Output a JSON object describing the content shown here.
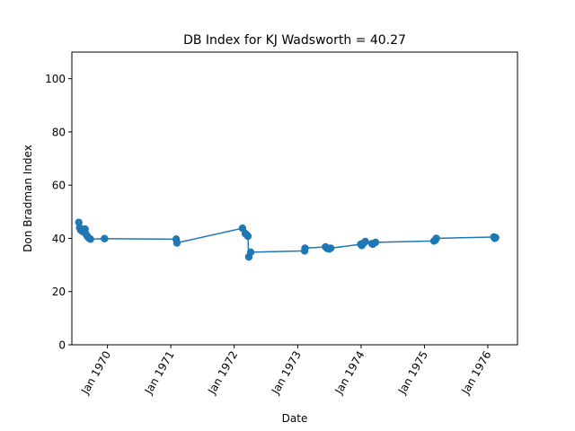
{
  "chart_data": {
    "type": "line",
    "title": "DB Index for KJ Wadsworth = 40.27",
    "xlabel": "Date",
    "ylabel": "Don Bradman Index",
    "ylim": [
      0,
      110
    ],
    "xlim": [
      "1969-06-10",
      "1976-06-20"
    ],
    "yticks": [
      0,
      20,
      40,
      60,
      80,
      100
    ],
    "xticks": [
      {
        "date": "1970-01-01",
        "label": "Jan 1970"
      },
      {
        "date": "1971-01-01",
        "label": "Jan 1971"
      },
      {
        "date": "1972-01-01",
        "label": "Jan 1972"
      },
      {
        "date": "1973-01-01",
        "label": "Jan 1973"
      },
      {
        "date": "1974-01-01",
        "label": "Jan 1974"
      },
      {
        "date": "1975-01-01",
        "label": "Jan 1975"
      },
      {
        "date": "1976-01-01",
        "label": "Jan 1976"
      }
    ],
    "grid": false,
    "line_color": "#1f77b4",
    "series": [
      {
        "marker": "circle",
        "points": [
          {
            "x": "1969-07-20",
            "y": 46.0
          },
          {
            "x": "1969-07-25",
            "y": 44.0
          },
          {
            "x": "1969-07-30",
            "y": 43.2
          },
          {
            "x": "1969-08-10",
            "y": 42.6
          },
          {
            "x": "1969-08-25",
            "y": 43.5
          },
          {
            "x": "1969-08-28",
            "y": 41.8
          },
          {
            "x": "1969-09-05",
            "y": 41.0
          },
          {
            "x": "1969-09-10",
            "y": 40.5
          },
          {
            "x": "1969-09-18",
            "y": 40.0
          },
          {
            "x": "1969-09-25",
            "y": 39.7
          },
          {
            "x": "1969-12-15",
            "y": 39.9
          },
          {
            "x": "1971-02-01",
            "y": 39.7
          },
          {
            "x": "1971-02-05",
            "y": 38.3
          },
          {
            "x": "1972-02-18",
            "y": 43.8
          },
          {
            "x": "1972-03-05",
            "y": 41.8
          },
          {
            "x": "1972-03-15",
            "y": 41.2
          },
          {
            "x": "1972-03-20",
            "y": 40.8
          },
          {
            "x": "1972-03-25",
            "y": 33.0
          },
          {
            "x": "1972-04-05",
            "y": 34.8
          },
          {
            "x": "1973-02-10",
            "y": 35.3
          },
          {
            "x": "1973-02-12",
            "y": 36.3
          },
          {
            "x": "1973-06-10",
            "y": 36.8
          },
          {
            "x": "1973-06-20",
            "y": 36.2
          },
          {
            "x": "1973-07-01",
            "y": 36.0
          },
          {
            "x": "1973-07-10",
            "y": 36.3
          },
          {
            "x": "1973-12-30",
            "y": 37.8
          },
          {
            "x": "1974-01-05",
            "y": 37.3
          },
          {
            "x": "1974-01-15",
            "y": 38.2
          },
          {
            "x": "1974-01-25",
            "y": 38.8
          },
          {
            "x": "1974-03-05",
            "y": 38.0
          },
          {
            "x": "1974-03-10",
            "y": 37.8
          },
          {
            "x": "1974-03-25",
            "y": 38.5
          },
          {
            "x": "1975-02-25",
            "y": 39.0
          },
          {
            "x": "1975-03-05",
            "y": 39.4
          },
          {
            "x": "1975-03-10",
            "y": 40.0
          },
          {
            "x": "1976-02-05",
            "y": 40.5
          },
          {
            "x": "1976-02-10",
            "y": 40.0
          },
          {
            "x": "1976-02-15",
            "y": 40.27
          }
        ]
      }
    ]
  }
}
